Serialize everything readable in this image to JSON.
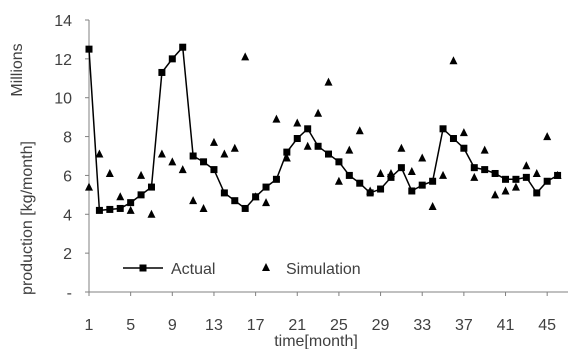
{
  "chart_data": {
    "type": "line",
    "xlabel": "time[month]",
    "ylabel": "production [kg/month]",
    "units_label": "Millions",
    "ylim": [
      0,
      14
    ],
    "xlim": [
      1,
      47
    ],
    "y_ticks": [
      "-",
      "2",
      "4",
      "6",
      "8",
      "10",
      "12",
      "14"
    ],
    "x_ticks": [
      1,
      5,
      9,
      13,
      17,
      21,
      25,
      29,
      33,
      37,
      41,
      45
    ],
    "grid": false,
    "legend_position": "bottom-left",
    "series": [
      {
        "name": "Actual",
        "mark": "line-square",
        "color": "#000000",
        "x": [
          1,
          2,
          3,
          4,
          5,
          6,
          7,
          8,
          9,
          10,
          11,
          12,
          13,
          14,
          15,
          16,
          17,
          18,
          19,
          20,
          21,
          22,
          23,
          24,
          25,
          26,
          27,
          28,
          29,
          30,
          31,
          32,
          33,
          34,
          35,
          36,
          37,
          38,
          39,
          40,
          41,
          42,
          43,
          44,
          45,
          46
        ],
        "values": [
          12.5,
          4.2,
          4.25,
          4.3,
          4.6,
          5.0,
          5.4,
          11.3,
          12.0,
          12.6,
          7.0,
          6.7,
          6.3,
          5.1,
          4.7,
          4.3,
          4.9,
          5.4,
          5.8,
          7.2,
          7.9,
          8.4,
          7.5,
          7.1,
          6.7,
          6.0,
          5.6,
          5.1,
          5.3,
          5.9,
          6.4,
          5.2,
          5.5,
          5.7,
          8.4,
          7.9,
          7.4,
          6.4,
          6.3,
          6.1,
          5.8,
          5.8,
          5.9,
          5.1,
          5.7,
          6.0
        ]
      },
      {
        "name": "Simulation",
        "mark": "triangle",
        "color": "#000000",
        "x": [
          1,
          2,
          3,
          4,
          5,
          6,
          7,
          8,
          9,
          10,
          11,
          12,
          13,
          14,
          15,
          16,
          17,
          18,
          19,
          20,
          21,
          22,
          23,
          24,
          25,
          26,
          27,
          28,
          29,
          30,
          31,
          32,
          33,
          34,
          35,
          36,
          37,
          38,
          39,
          40,
          41,
          42,
          43,
          44,
          45,
          46
        ],
        "values": [
          5.4,
          7.1,
          6.1,
          4.9,
          4.2,
          6.0,
          4.0,
          7.1,
          6.7,
          6.3,
          4.7,
          4.3,
          7.7,
          7.1,
          7.4,
          12.1,
          4.9,
          4.6,
          8.9,
          6.9,
          8.7,
          7.5,
          9.2,
          10.8,
          5.7,
          7.3,
          8.3,
          5.2,
          6.1,
          6.1,
          7.4,
          6.2,
          6.9,
          4.4,
          6.0,
          11.9,
          8.2,
          5.9,
          7.3,
          5.0,
          5.2,
          5.4,
          6.5,
          6.1,
          8.0,
          6.0
        ]
      }
    ]
  }
}
